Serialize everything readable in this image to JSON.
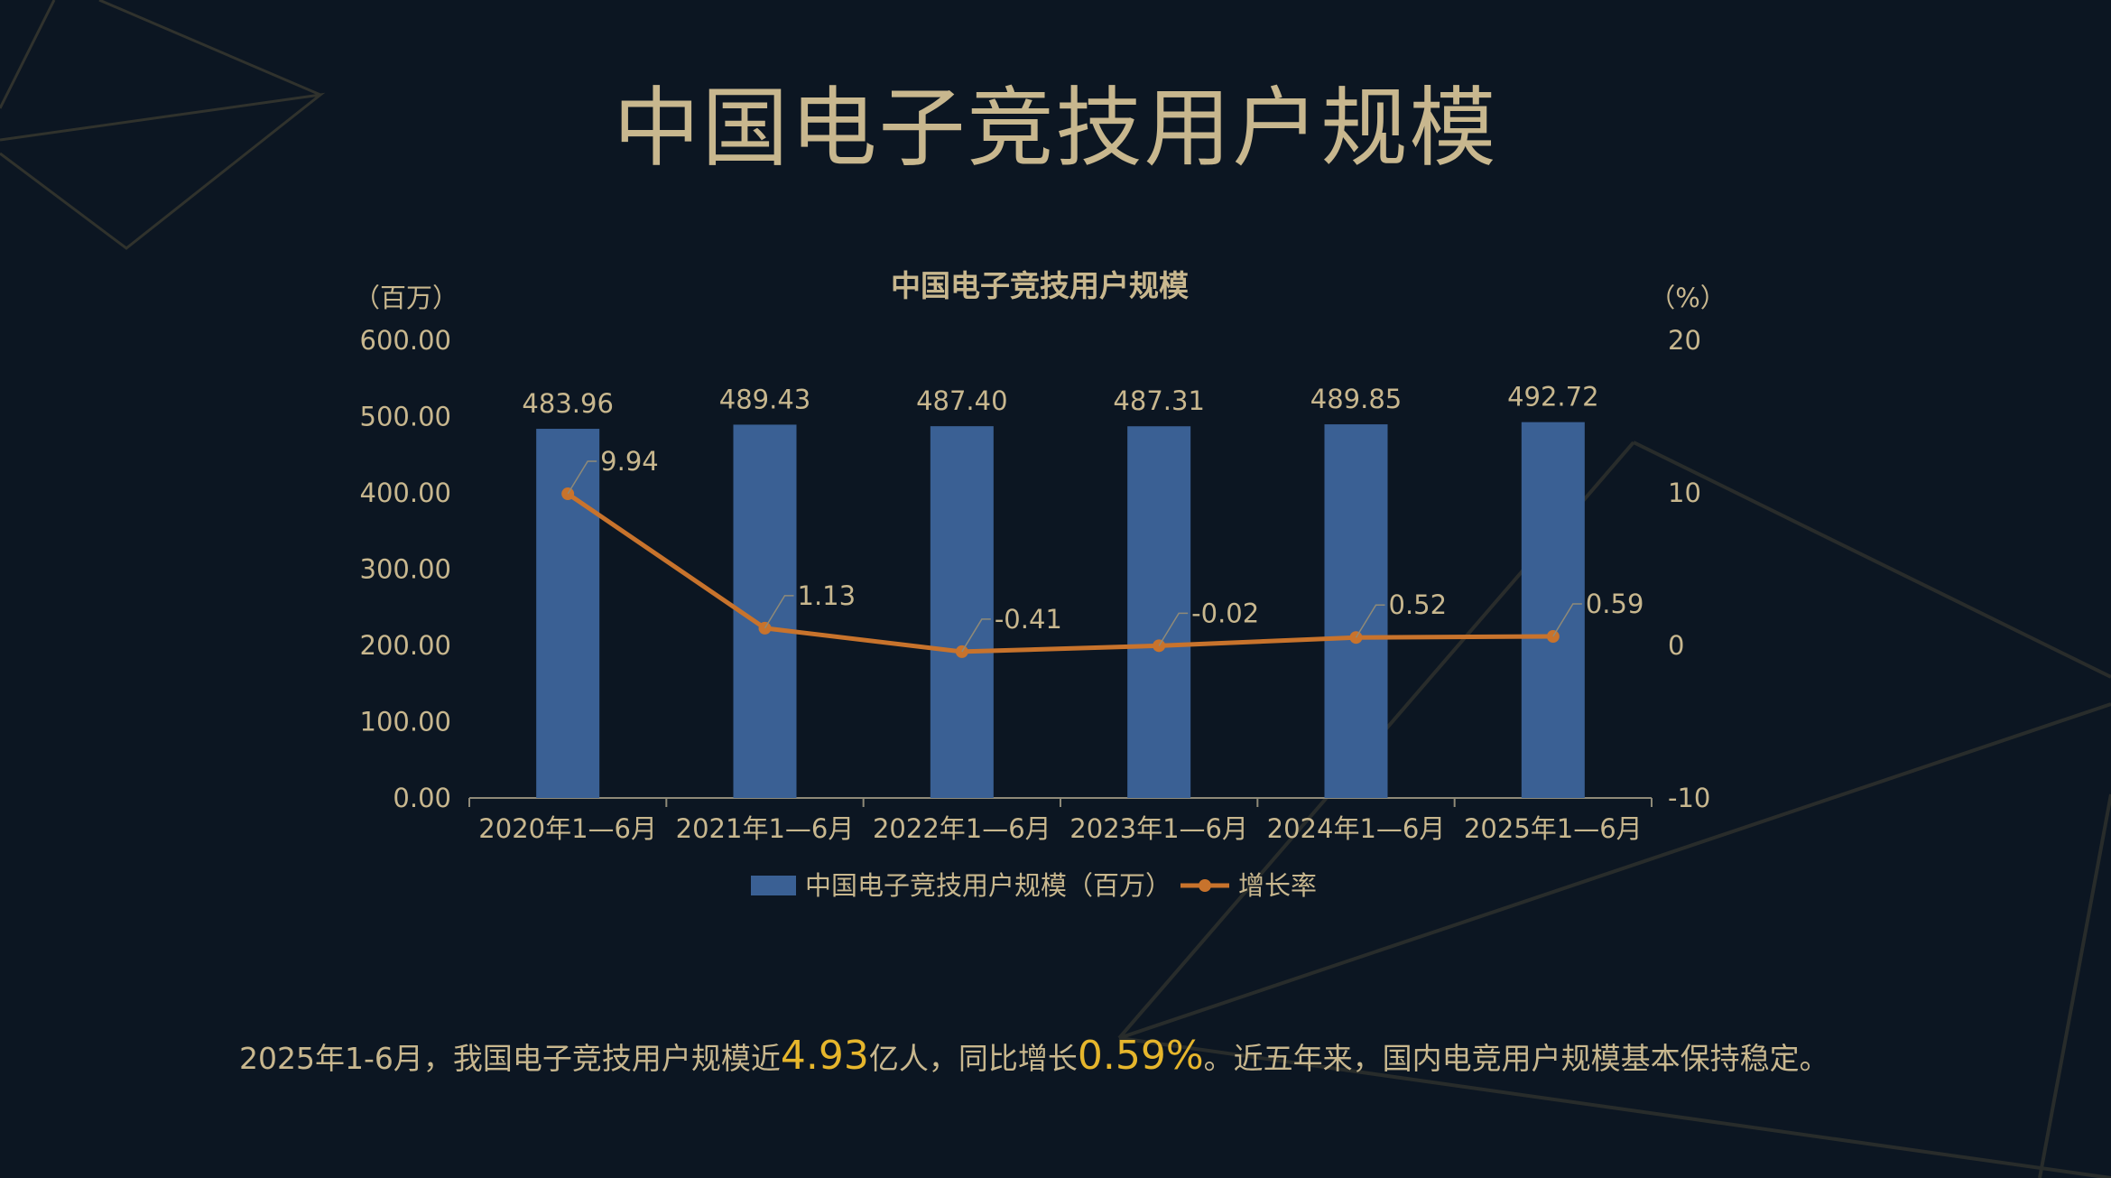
{
  "title": "中国电子竞技用户规模",
  "chart_data": {
    "type": "bar",
    "title": "中国电子竞技用户规模",
    "ylabel_left": "（百万）",
    "ylabel_right": "（%）",
    "ylim_left": [
      0,
      600
    ],
    "yticks_left": [
      "0.00",
      "100.00",
      "200.00",
      "300.00",
      "400.00",
      "500.00",
      "600.00"
    ],
    "ylim_right": [
      -10,
      20
    ],
    "yticks_right": [
      "-10",
      "0",
      "10",
      "20"
    ],
    "categories": [
      "2020年1—6月",
      "2021年1—6月",
      "2022年1—6月",
      "2023年1—6月",
      "2024年1—6月",
      "2025年1—6月"
    ],
    "series": [
      {
        "name": "中国电子竞技用户规模（百万）",
        "type": "bar",
        "axis": "left",
        "color": "#3a6094",
        "values": [
          483.96,
          489.43,
          487.4,
          487.31,
          489.85,
          492.72
        ],
        "labels": [
          "483.96",
          "489.43",
          "487.40",
          "487.31",
          "489.85",
          "492.72"
        ]
      },
      {
        "name": "增长率",
        "type": "line",
        "axis": "right",
        "color": "#c8732c",
        "values": [
          9.94,
          1.13,
          -0.41,
          -0.02,
          0.52,
          0.59
        ],
        "labels": [
          "9.94",
          "1.13",
          "-0.41",
          "-0.02",
          "0.52",
          "0.59"
        ]
      }
    ],
    "legend": "bottom-center",
    "grid": false
  },
  "footer": {
    "part1": "2025年1-6月，我国电子竞技用户规模近",
    "value1": "4.93",
    "part2": "亿人，同比增长",
    "value2": "0.59%",
    "part3": "。近五年来，国内电竞用户规模基本保持稳定。"
  },
  "colors": {
    "background": "#0c1622",
    "gold": "#c8b78e",
    "highlight": "#e6b62c"
  }
}
